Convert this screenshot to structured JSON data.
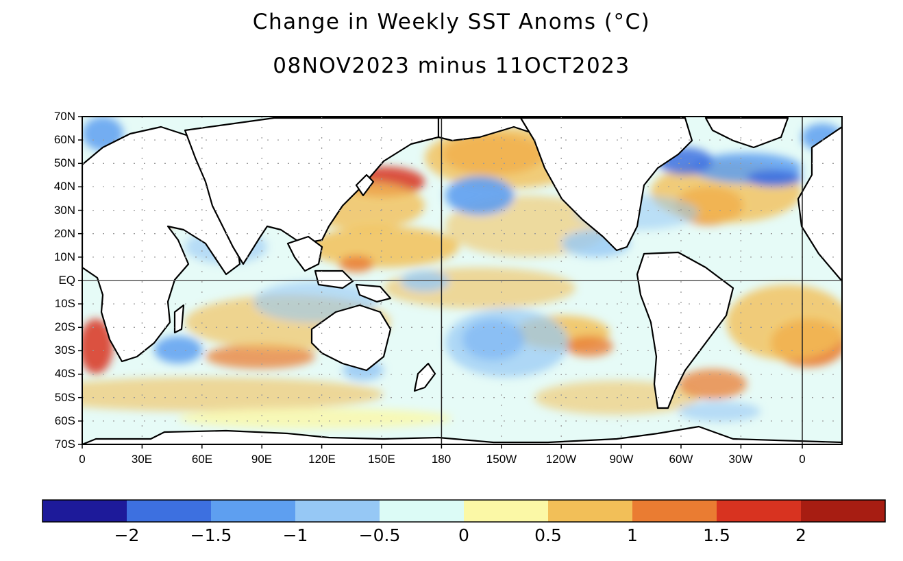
{
  "title": "Change in Weekly SST Anoms (°C)",
  "subtitle": "08NOV2023 minus 11OCT2023",
  "map": {
    "lat_labels": [
      "70N",
      "60N",
      "50N",
      "40N",
      "30N",
      "20N",
      "10N",
      "EQ",
      "10S",
      "20S",
      "30S",
      "40S",
      "50S",
      "60S",
      "70S"
    ],
    "lon_labels": [
      "0",
      "30E",
      "60E",
      "90E",
      "120E",
      "150E",
      "180",
      "150W",
      "120W",
      "90W",
      "60W",
      "30W",
      "0"
    ],
    "colors": {
      "ocean_neutral": "#e6fbf7",
      "land": "#ffffff",
      "coast": "#000000",
      "grid_dots": "#9a9a9a"
    }
  },
  "colorbar": {
    "bins": [
      "#1d1a9a",
      "#3d70e0",
      "#5e9ff0",
      "#96c8f5",
      "#dcfbf6",
      "#fbf8a6",
      "#f2bf58",
      "#ea7c32",
      "#d83320",
      "#a71d12"
    ],
    "labels": [
      "−2",
      "−1.5",
      "−1",
      "−0.5",
      "0",
      "0.5",
      "1",
      "1.5",
      "2"
    ]
  }
}
